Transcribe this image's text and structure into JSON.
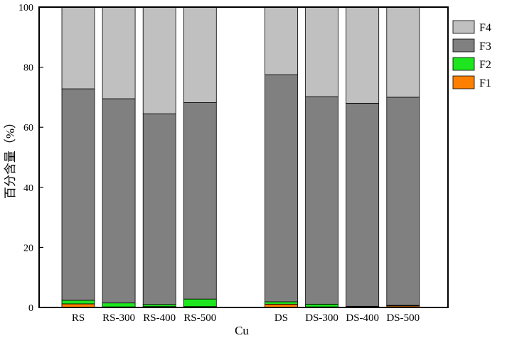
{
  "chart_data": {
    "type": "bar",
    "stacked": true,
    "xlabel": "Cu",
    "ylabel": "百分含量（%）",
    "ylim": [
      0,
      100
    ],
    "yticks": [
      0,
      20,
      40,
      60,
      80,
      100
    ],
    "grid": false,
    "legend": "right",
    "categories": [
      "RS",
      "RS-300",
      "RS-400",
      "RS-500",
      "DS",
      "DS-300",
      "DS-400",
      "DS-500"
    ],
    "series": [
      {
        "name": "F1",
        "color": "#ff8000",
        "values": [
          1.2,
          0.2,
          0.3,
          0.3,
          1.1,
          0.2,
          0.2,
          0.5
        ]
      },
      {
        "name": "F2",
        "color": "#1ee61e",
        "values": [
          1.2,
          1.3,
          0.7,
          2.5,
          0.8,
          0.9,
          0.2,
          0.2
        ]
      },
      {
        "name": "F3",
        "color": "#808080",
        "values": [
          70.4,
          68.0,
          63.5,
          65.4,
          75.6,
          69.1,
          67.6,
          69.3
        ]
      },
      {
        "name": "F4",
        "color": "#c0c0c0",
        "values": [
          27.2,
          30.5,
          35.5,
          31.8,
          22.5,
          29.8,
          32.0,
          30.0
        ]
      }
    ]
  }
}
